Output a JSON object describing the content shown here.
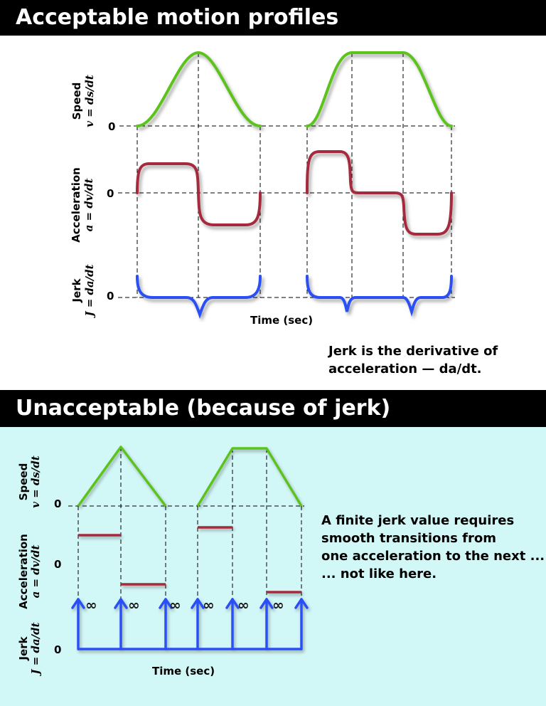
{
  "section_top": {
    "title": "Acceptable motion profiles",
    "labels": {
      "speed": "Speed",
      "speed_formula": "v = ds/dt",
      "acceleration": "Acceleration",
      "acceleration_formula": "a = dv/dt",
      "jerk": "Jerk",
      "jerk_formula": "J = da/dt",
      "zero": "0",
      "time": "Time  (sec)"
    },
    "note_lines": [
      "Jerk is the derivative of",
      "acceleration — da/dt."
    ]
  },
  "section_bottom": {
    "title": "Unacceptable (because of jerk)",
    "labels": {
      "speed": "Speed",
      "speed_formula": "v = ds/dt",
      "acceleration": "Acceleration",
      "acceleration_formula": "a = dv/dt",
      "jerk": "Jerk",
      "jerk_formula": "J = da/dt",
      "zero": "0",
      "time": "Time  (sec)",
      "infinity": "∞"
    },
    "note_lines": [
      "A finite jerk value requires",
      "smooth transitions from",
      "one acceleration to the next ...",
      "... not like here."
    ]
  },
  "colors": {
    "speed": "#5cc21c",
    "acceleration": "#a52a3c",
    "jerk": "#2a4ff5",
    "bottom_background": "#d2f7f7"
  }
}
